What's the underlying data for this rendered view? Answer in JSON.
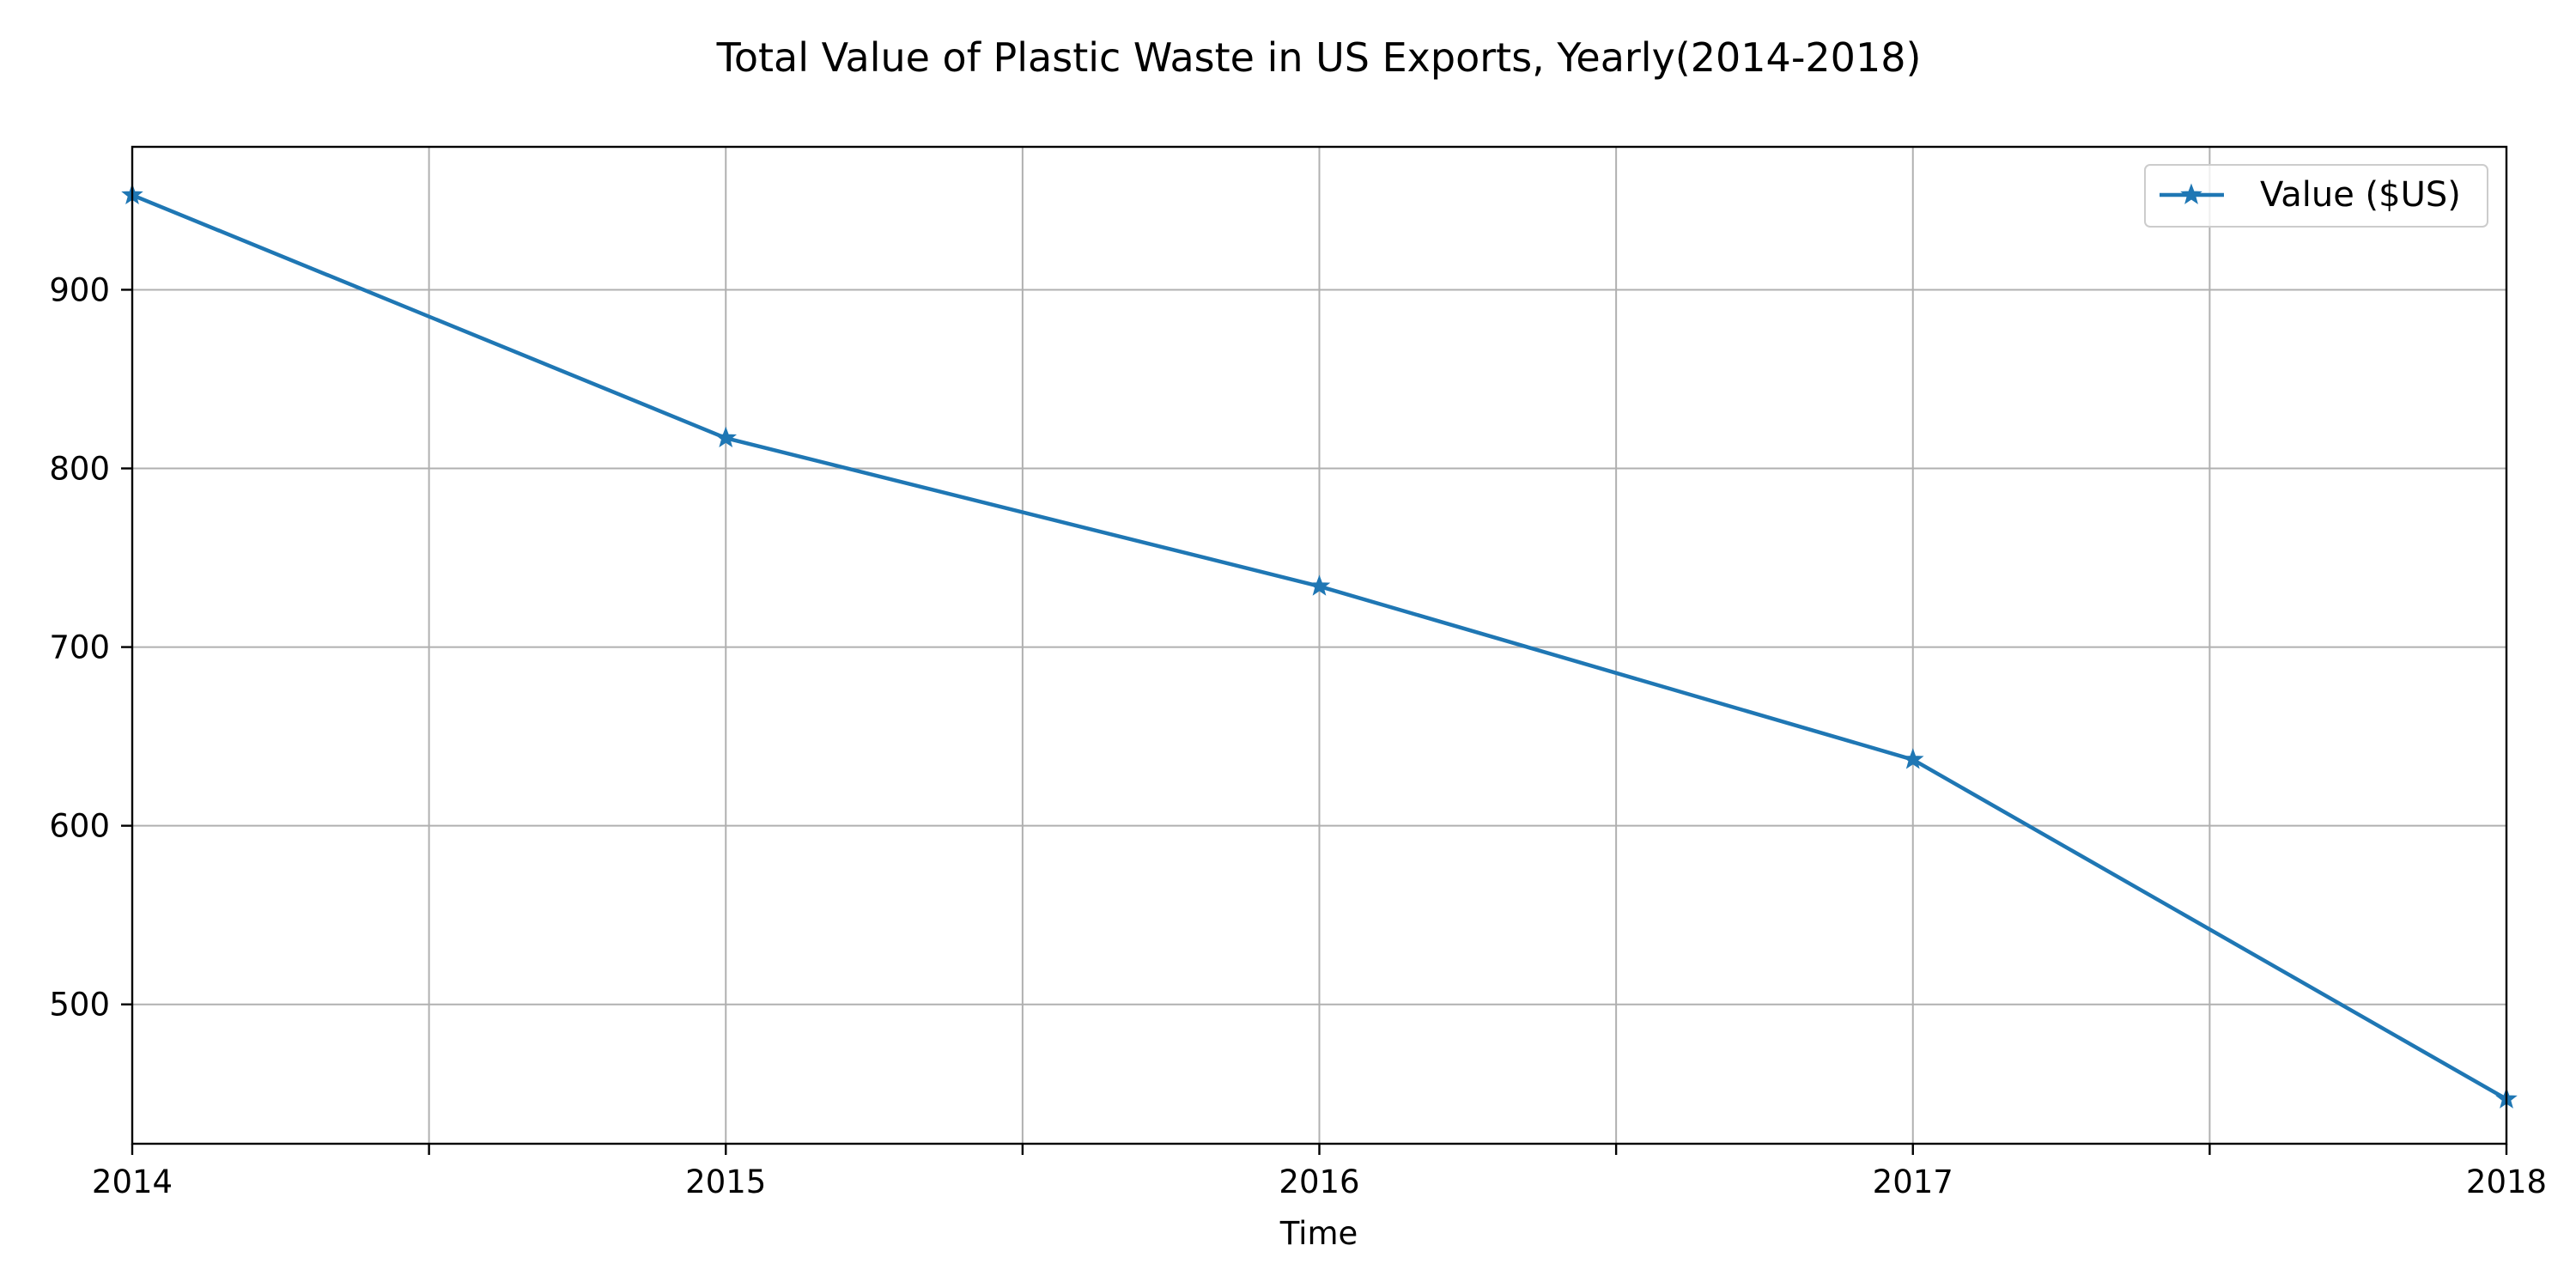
{
  "chart_data": {
    "type": "line",
    "title": "Total Value of Plastic Waste in US Exports, Yearly(2014-2018)",
    "xlabel": "Time",
    "ylabel": "",
    "x_tick_labels": [
      "2014",
      "2015",
      "2016",
      "2017",
      "2018"
    ],
    "x": [
      2014,
      2015,
      2016,
      2017,
      2018
    ],
    "xlim": [
      2014,
      2018
    ],
    "ylim": [
      422,
      980
    ],
    "y_ticks": [
      500,
      600,
      700,
      800,
      900
    ],
    "y_tick_labels": [
      "500",
      "600",
      "700",
      "800",
      "900"
    ],
    "grid": true,
    "legend_position": "top-right",
    "series": [
      {
        "name": "Value ($US)",
        "values": [
          953,
          817,
          734,
          637,
          447
        ],
        "color": "#1f77b4",
        "marker": "star"
      }
    ]
  }
}
